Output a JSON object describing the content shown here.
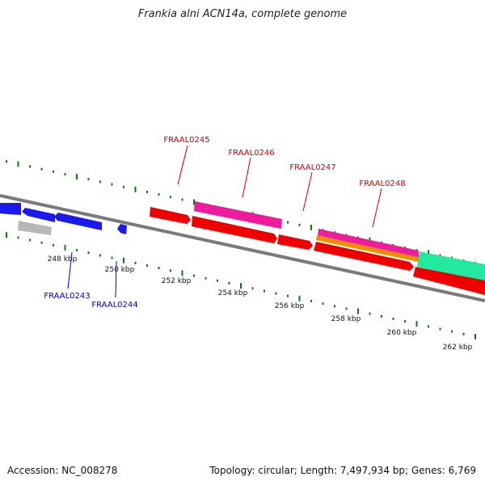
{
  "title": "Frankia alni ACN14a, complete genome",
  "footer": {
    "accession": "Accession: NC_008278",
    "summary": "Topology: circular; Length: 7,497,934 bp; Genes: 6,769"
  },
  "colors": {
    "forward_label": "#cc0000",
    "reverse_label": "#0000cc",
    "gene_red": "#ee0000",
    "gene_blue": "#1a1aee",
    "gene_magenta": "#ee1c9c",
    "gene_orange": "#f28c00",
    "gene_teal": "#22e8a0",
    "gene_gray": "#b8b8b8",
    "tick_green": "#117711",
    "axis_gray": "#7a7a7a"
  },
  "tick_labels": [
    "248 kbp",
    "250 kbp",
    "252 kbp",
    "254 kbp",
    "256 kbp",
    "258 kbp",
    "260 kbp",
    "262 kbp"
  ],
  "gene_labels": {
    "forward": [
      "FRAAL0245",
      "FRAAL0246",
      "FRAAL0247",
      "FRAAL0248"
    ],
    "reverse": [
      "FRAAL0243",
      "FRAAL0244"
    ]
  }
}
